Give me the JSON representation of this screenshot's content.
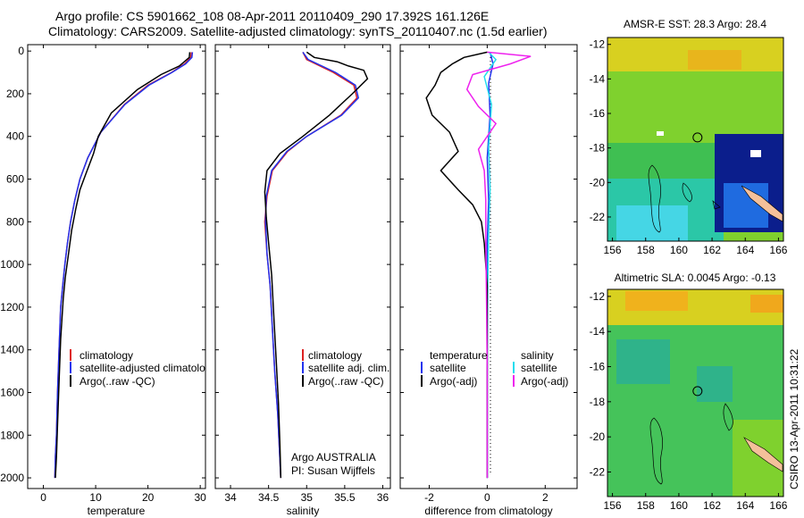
{
  "header": {
    "title_line1": "Argo profile: CS 5901662_108 08-Apr-2011 20110409_290 17.392S 161.126E",
    "title_line2": "Climatology: CARS2009. Satellite-adjusted climatology: synTS_20110407.nc (1.5d earlier)"
  },
  "side_label": "CSIRO 13-Apr-2011 10:31:22",
  "colors": {
    "climatology": "#dd2222",
    "satellite": "#2233ee",
    "argo": "#000000",
    "sat_diff": "#22ddee",
    "argo_adj": "#ee22ee"
  },
  "chart_data": [
    {
      "type": "line",
      "panel": "temperature",
      "xlabel": "temperature",
      "ylabel": "",
      "xlim": [
        -3,
        31
      ],
      "ylim": [
        2050,
        -30
      ],
      "xticks": [
        0,
        10,
        20,
        30
      ],
      "yticks": [
        0,
        200,
        400,
        600,
        800,
        1000,
        1200,
        1400,
        1600,
        1800,
        2000
      ],
      "legend": [
        "climatology",
        "satellite-adjusted climatology",
        "Argo(..raw -QC)"
      ],
      "series": [
        {
          "name": "climatology",
          "color": "#dd2222",
          "x": [
            28.3,
            28.2,
            27.0,
            24.5,
            20.0,
            15.5,
            11.0,
            8.5,
            7.0,
            6.0,
            5.2,
            4.6,
            4.1,
            3.7,
            3.3,
            3.0,
            2.7,
            2.5,
            2.3,
            2.2
          ],
          "y": [
            5,
            30,
            60,
            100,
            160,
            250,
            380,
            500,
            600,
            700,
            800,
            900,
            1000,
            1100,
            1200,
            1400,
            1600,
            1800,
            1900,
            2000
          ]
        },
        {
          "name": "satellite-adjusted climatology",
          "color": "#2233ee",
          "x": [
            28.5,
            28.4,
            27.2,
            24.6,
            20.2,
            15.6,
            11.0,
            8.5,
            7.0,
            6.0,
            5.2,
            4.6,
            4.1,
            3.7,
            3.3,
            3.0,
            2.7,
            2.5,
            2.3,
            2.2
          ],
          "y": [
            5,
            30,
            60,
            100,
            160,
            250,
            380,
            500,
            600,
            700,
            800,
            900,
            1000,
            1100,
            1200,
            1400,
            1600,
            1800,
            1900,
            2000
          ]
        },
        {
          "name": "Argo(..raw -QC)",
          "color": "#000000",
          "x": [
            28.0,
            27.9,
            26.0,
            22.5,
            18.0,
            13.0,
            10.5,
            9.6,
            8.2,
            7.0,
            6.2,
            5.4,
            4.8,
            4.2,
            3.8,
            3.3,
            3.0,
            2.7,
            2.5,
            2.3
          ],
          "y": [
            5,
            30,
            70,
            110,
            180,
            290,
            400,
            480,
            570,
            650,
            740,
            840,
            950,
            1060,
            1160,
            1350,
            1550,
            1750,
            1900,
            2000
          ]
        }
      ]
    },
    {
      "type": "line",
      "panel": "salinity",
      "xlabel": "salinity",
      "ylabel": "",
      "xlim": [
        33.8,
        36.1
      ],
      "ylim": [
        2050,
        -30
      ],
      "xticks": [
        34,
        34.5,
        35,
        35.5,
        36
      ],
      "xtick_labels": [
        "34",
        "34.5",
        "35",
        "35.5",
        "36"
      ],
      "legend": [
        "climatology",
        "satellite adj. clim.",
        "Argo(..raw -QC)"
      ],
      "series": [
        {
          "name": "climatology",
          "color": "#dd2222",
          "x": [
            34.95,
            35.0,
            35.35,
            35.62,
            35.66,
            35.45,
            35.0,
            34.75,
            34.55,
            34.48,
            34.45,
            34.48,
            34.52,
            34.55,
            34.58,
            34.62,
            34.64,
            34.66
          ],
          "y": [
            5,
            40,
            100,
            160,
            220,
            300,
            400,
            470,
            560,
            680,
            800,
            950,
            1100,
            1300,
            1500,
            1700,
            1850,
            2000
          ]
        },
        {
          "name": "satellite adj. clim.",
          "color": "#2233ee",
          "x": [
            34.95,
            35.02,
            35.38,
            35.64,
            35.68,
            35.46,
            35.0,
            34.74,
            34.54,
            34.47,
            34.46,
            34.48,
            34.52,
            34.55,
            34.58,
            34.62,
            34.64,
            34.66
          ],
          "y": [
            5,
            40,
            100,
            160,
            220,
            300,
            400,
            470,
            560,
            680,
            800,
            950,
            1100,
            1300,
            1500,
            1700,
            1850,
            2000
          ]
        },
        {
          "name": "Argo(..raw -QC)",
          "color": "#000000",
          "x": [
            35.0,
            35.1,
            35.4,
            35.55,
            35.75,
            35.8,
            35.6,
            35.3,
            34.95,
            34.65,
            34.48,
            34.45,
            34.47,
            34.5,
            34.54,
            34.57,
            34.6,
            34.63,
            34.65,
            34.66
          ],
          "y": [
            5,
            30,
            50,
            70,
            90,
            130,
            200,
            300,
            400,
            480,
            560,
            660,
            780,
            900,
            1050,
            1250,
            1450,
            1650,
            1850,
            2000
          ]
        }
      ]
    },
    {
      "type": "line",
      "panel": "difference",
      "xlabel": "difference from climatology",
      "ylabel": "",
      "xlim": [
        -3.0,
        3.1
      ],
      "ylim": [
        2050,
        -30
      ],
      "xticks": [
        -2,
        0,
        2
      ],
      "legend_titles": [
        "temperature",
        "salinity"
      ],
      "legend": [
        "satellite",
        "Argo(-adj)",
        "satellite",
        "Argo(-adj)"
      ],
      "annotations": [
        "Argo AUSTRALIA",
        "PI: Susan Wijffels"
      ],
      "series": [
        {
          "name": "satellite",
          "legend_group": "temperature",
          "color": "#2233ee",
          "x": [
            0.1,
            0.2,
            0.05,
            0.1,
            0.0,
            0.05,
            0.0,
            0.0,
            0.0,
            0.0,
            0.0
          ],
          "y": [
            5,
            60,
            150,
            300,
            500,
            700,
            900,
            1200,
            1500,
            1800,
            2000
          ]
        },
        {
          "name": "satellite",
          "legend_group": "salinity",
          "color": "#22ddee",
          "x": [
            0.05,
            0.3,
            -0.1,
            0.15,
            0.05,
            0.1,
            0.05,
            0.02,
            0.0,
            0.0,
            0.0
          ],
          "y": [
            5,
            40,
            120,
            250,
            450,
            650,
            850,
            1100,
            1400,
            1700,
            2000
          ]
        },
        {
          "name": "Argo(-adj)",
          "legend_group": "temperature",
          "color": "#000000",
          "x": [
            0.0,
            -0.8,
            -1.2,
            -1.6,
            -1.8,
            -2.1,
            -1.9,
            -1.3,
            -1.0,
            -1.6,
            -1.0,
            -0.5,
            -0.2,
            -0.1,
            0.0,
            0.0,
            0.0,
            0.0
          ],
          "y": [
            5,
            30,
            60,
            100,
            160,
            220,
            300,
            380,
            470,
            560,
            650,
            720,
            800,
            900,
            1100,
            1400,
            1700,
            2000
          ]
        },
        {
          "name": "Argo(-adj)",
          "legend_group": "salinity",
          "color": "#ee22ee",
          "x": [
            0.0,
            1.5,
            0.8,
            -0.5,
            -0.7,
            -0.3,
            0.3,
            0.0,
            -0.3,
            -0.1,
            -0.05,
            -0.05,
            -0.02,
            0.0,
            0.0
          ],
          "y": [
            5,
            25,
            60,
            110,
            180,
            260,
            340,
            400,
            460,
            560,
            700,
            900,
            1200,
            1500,
            2000
          ]
        }
      ]
    },
    {
      "type": "heatmap",
      "panel": "sst_map",
      "title": "AMSR-E SST: 28.3 Argo: 28.4",
      "xlim": [
        155.7,
        166.3
      ],
      "ylim": [
        -23.4,
        -11.6
      ],
      "xticks": [
        156,
        158,
        160,
        162,
        164,
        166
      ],
      "yticks": [
        -12,
        -14,
        -16,
        -18,
        -20,
        -22
      ],
      "argo_position": [
        161.126,
        -17.392
      ]
    },
    {
      "type": "heatmap",
      "panel": "sla_map",
      "title": "Altimetric SLA: 0.0045 Argo: -0.13",
      "xlim": [
        155.7,
        166.3
      ],
      "ylim": [
        -23.4,
        -11.6
      ],
      "xticks": [
        156,
        158,
        160,
        162,
        164,
        166
      ],
      "yticks": [
        -12,
        -14,
        -16,
        -18,
        -20,
        -22
      ],
      "argo_position": [
        161.126,
        -17.392
      ]
    }
  ]
}
